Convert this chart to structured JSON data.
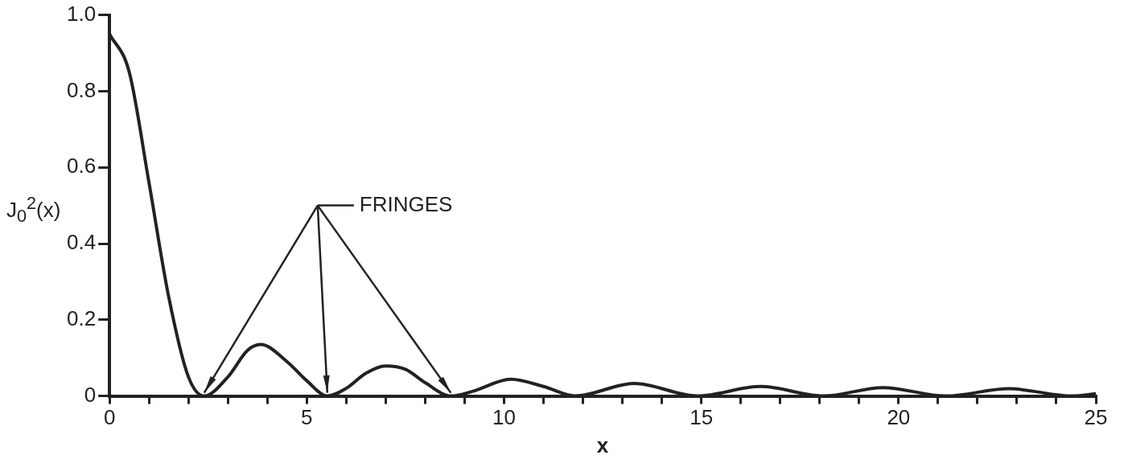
{
  "chart_data": {
    "type": "line",
    "ylabel": "J$_{0}$$^{2}$(x)",
    "xlabel": "x",
    "x": [
      0,
      0.5,
      1,
      1.5,
      2,
      2.4,
      3,
      3.5,
      3.83,
      4.5,
      5,
      5.52,
      6,
      6.5,
      7,
      7.5,
      8,
      8.65,
      9.2,
      10.17,
      11,
      11.8,
      13.3,
      14.9,
      16.5,
      18.1,
      19.6,
      21.2,
      22.8,
      24.4,
      25
    ],
    "series": [
      {
        "color": "#222222",
        "values": [
          0.95,
          0.85,
          0.56,
          0.26,
          0.05,
          0,
          0.05,
          0.12,
          0.135,
          0.09,
          0.04,
          0,
          0.02,
          0.06,
          0.079,
          0.07,
          0.035,
          0,
          0.012,
          0.044,
          0.025,
          0,
          0.033,
          0,
          0.025,
          0,
          0.022,
          0,
          0.019,
          0,
          0.006
        ]
      }
    ],
    "xlim": [
      0,
      25
    ],
    "xticks": [
      0,
      {
        "value": 1,
        "label": null
      },
      {
        "value": 2,
        "label": null
      },
      {
        "value": 3,
        "label": null
      },
      {
        "value": 4,
        "label": null
      },
      5,
      {
        "value": 6,
        "label": null
      },
      {
        "value": 7,
        "label": null
      },
      {
        "value": 8,
        "label": null
      },
      {
        "value": 9,
        "label": null
      },
      10,
      {
        "value": 11,
        "label": null
      },
      {
        "value": 12,
        "label": null
      },
      {
        "value": 13,
        "label": null
      },
      {
        "value": 14,
        "label": null
      },
      15,
      {
        "value": 16,
        "label": null
      },
      {
        "value": 17,
        "label": null
      },
      {
        "value": 18,
        "label": null
      },
      {
        "value": 19,
        "label": null
      },
      20,
      {
        "value": 21,
        "label": null
      },
      {
        "value": 22,
        "label": null
      },
      {
        "value": 23,
        "label": null
      },
      {
        "value": 24,
        "label": null
      },
      25
    ],
    "ylim": [
      0,
      1
    ],
    "yticks": [
      0,
      0.2,
      0.4,
      0.6,
      0.8,
      {
        "value": 1,
        "label": "1.0"
      }
    ],
    "grid": false,
    "legend": false,
    "marker": "none",
    "line_style": "solid",
    "annotations": [
      "FRINGES"
    ]
  }
}
